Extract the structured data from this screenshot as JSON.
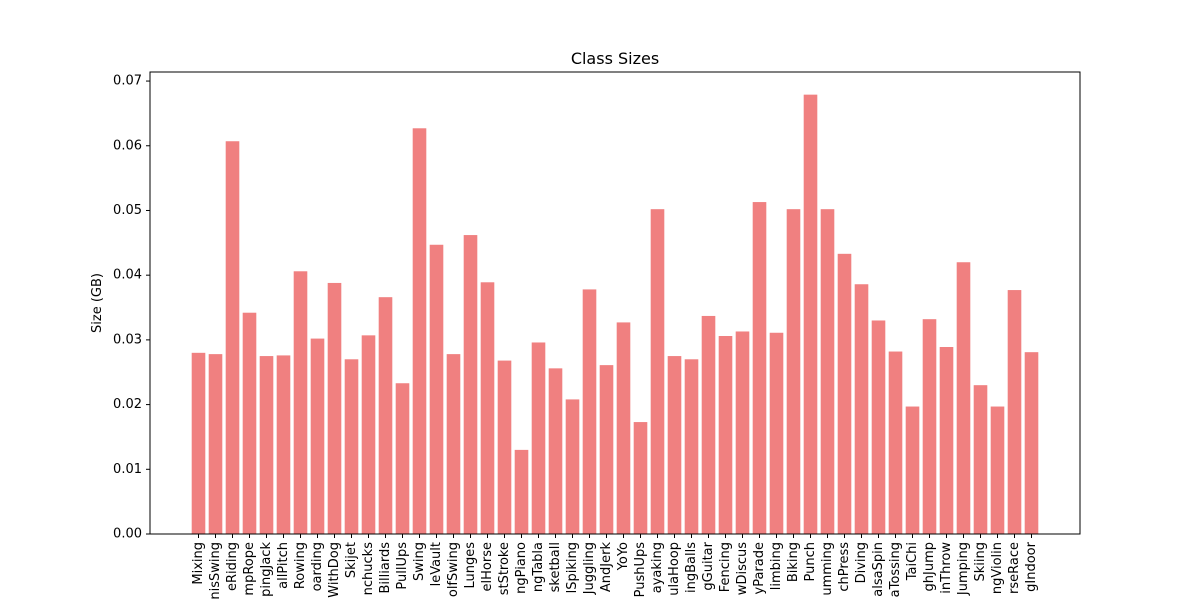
{
  "chart_data": {
    "type": "bar",
    "title": "Class Sizes",
    "xlabel": "",
    "ylabel": "Size (GB)",
    "ylim": [
      0,
      0.0714
    ],
    "yticks": [
      "0.00",
      "0.01",
      "0.02",
      "0.03",
      "0.04",
      "0.05",
      "0.06",
      "0.07"
    ],
    "ytick_values": [
      0,
      0.01,
      0.02,
      0.03,
      0.04,
      0.05,
      0.06,
      0.07
    ],
    "bar_color": "#f08080",
    "grid": false,
    "categories": [
      "Mixing",
      "nisSwing",
      "eRiding",
      "mpRope",
      "pingJack",
      "allPitch",
      "Rowing",
      "oarding",
      "WithDog",
      "Skijet",
      "nchucks",
      "Billiards",
      "PullUps",
      "Swing",
      "leVault",
      "olfSwing",
      "Lunges",
      "elHorse",
      "stStroke",
      "ngPiano",
      "ngTabla",
      "sketball",
      "lSpiking",
      "Juggling",
      "AndJerk",
      "YoYo",
      "PushUps",
      "ayaking",
      "ulaHoop",
      "ingBalls",
      "gGuitar",
      "Fencing",
      "wDiscus",
      "yParade",
      "limbing",
      "Biking",
      "Punch",
      "umming",
      "chPress",
      "Diving",
      "alsaSpin",
      "aTossing",
      "TaiChi",
      "ghJump",
      "inThrow",
      "Jumping",
      "Skiing",
      "ngViolin",
      "rseRace",
      "gIndoor"
    ],
    "values": [
      0.028,
      0.0278,
      0.0607,
      0.0342,
      0.0275,
      0.0276,
      0.0406,
      0.0302,
      0.0388,
      0.027,
      0.0307,
      0.0366,
      0.0233,
      0.0627,
      0.0447,
      0.0278,
      0.0462,
      0.0389,
      0.0268,
      0.013,
      0.0296,
      0.0256,
      0.0208,
      0.0378,
      0.0261,
      0.0327,
      0.0173,
      0.0502,
      0.0275,
      0.027,
      0.0337,
      0.0306,
      0.0313,
      0.0513,
      0.0311,
      0.0502,
      0.0679,
      0.0502,
      0.0433,
      0.0386,
      0.033,
      0.0282,
      0.0197,
      0.0332,
      0.0289,
      0.042,
      0.023,
      0.0197,
      0.0377,
      0.0281
    ]
  }
}
